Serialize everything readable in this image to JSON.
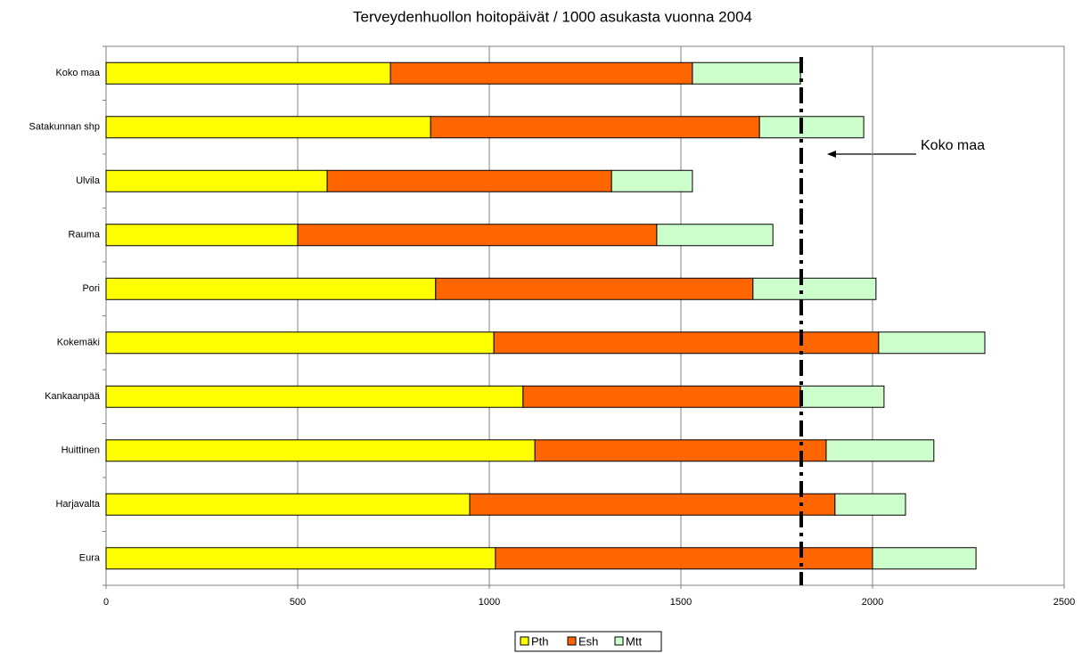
{
  "chart_data": {
    "type": "stacked-bar-horizontal",
    "title": "Terveydenhuollon hoitopäivät / 1000 asukasta vuonna 2004",
    "categories": [
      "Koko maa",
      "Satakunnan shp",
      "Ulvila",
      "Rauma",
      "Pori",
      "Kokemäki",
      "Kankaanpää",
      "Huittinen",
      "Harjavalta",
      "Eura"
    ],
    "series": [
      {
        "name": "Pth",
        "color": "#ffff00",
        "values": [
          742,
          847,
          577,
          500,
          860,
          1012,
          1088,
          1119,
          949,
          1016
        ]
      },
      {
        "name": "Esh",
        "color": "#ff6600",
        "values": [
          788,
          858,
          742,
          937,
          828,
          1004,
          724,
          760,
          953,
          984
        ]
      },
      {
        "name": "Mtt",
        "color": "#ccffcc",
        "values": [
          282,
          272,
          211,
          303,
          321,
          277,
          218,
          281,
          184,
          270
        ]
      }
    ],
    "xlim": [
      0,
      2500
    ],
    "xticks": [
      0,
      500,
      1000,
      1500,
      2000,
      2500
    ],
    "grid": true,
    "annotation": {
      "text": "Koko maa",
      "value": 1814
    }
  }
}
